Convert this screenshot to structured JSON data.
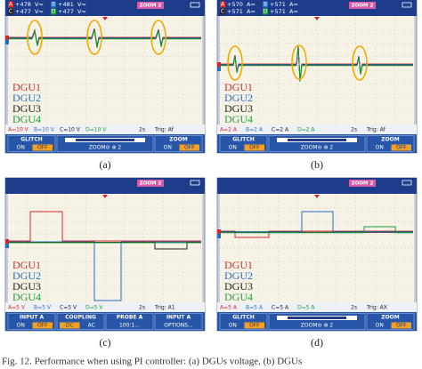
{
  "channel_colors": [
    "#d62828",
    "#1f6fd0",
    "#222222",
    "#1f9e3a"
  ],
  "panels": [
    {
      "top_readings": [
        {
          "channel": "A",
          "value": "+478",
          "unit": "V="
        },
        {
          "channel": "B",
          "value": "+481",
          "unit": "V="
        },
        {
          "channel": "C",
          "value": "+477",
          "unit": "V="
        },
        {
          "channel": "D",
          "value": "+477",
          "unit": "V="
        }
      ],
      "zoom": "ZOOM 2",
      "legend": [
        "DGU1",
        "DGU2",
        "DGU3",
        "DGU4"
      ],
      "scales": [
        "A=10 V",
        "B=10 V",
        "C=10 V",
        "D=10 V"
      ],
      "timebase": "2s",
      "trigger": "Trig: Af",
      "buttons": [
        {
          "label": "GLITCH",
          "options": [
            "ON",
            "OFF"
          ],
          "selected": 1
        },
        {
          "label": "ZOOM⊖ ⊕ 2",
          "slider": true
        },
        {
          "label": "ZOOM",
          "options": [
            "ON",
            "OFF"
          ],
          "selected": 1
        }
      ],
      "caption": "(a)"
    },
    {
      "top_readings": [
        {
          "channel": "A",
          "value": "+570",
          "unit": "A="
        },
        {
          "channel": "B",
          "value": "+571",
          "unit": "A="
        },
        {
          "channel": "C",
          "value": "+571",
          "unit": "A="
        },
        {
          "channel": "D",
          "value": "+571",
          "unit": "A="
        }
      ],
      "zoom": "ZOOM 2",
      "legend": [
        "DGU1",
        "DGU2",
        "DGU3",
        "DGU4"
      ],
      "scales": [
        "A=2 A",
        "B=2 A",
        "C=2 A",
        "D=2 A"
      ],
      "timebase": "2s",
      "trigger": "Trig: Af",
      "buttons": [
        {
          "label": "GLITCH",
          "options": [
            "ON",
            "OFF"
          ],
          "selected": 1
        },
        {
          "label": "ZOOM⊖ ⊕ 2",
          "slider": true
        },
        {
          "label": "ZOOM",
          "options": [
            "ON",
            "OFF"
          ],
          "selected": 1
        }
      ],
      "caption": "(b)"
    },
    {
      "top_readings": [],
      "zoom": "ZOOM 2",
      "legend": [
        "DGU1",
        "DGU2",
        "DGU3",
        "DGU4"
      ],
      "scales": [
        "A=5 V",
        "B=5 V",
        "C=5 V",
        "D=5 V"
      ],
      "timebase": "2s",
      "trigger": "Trig: A1",
      "buttons": [
        {
          "label": "INPUT A",
          "options": [
            "ON",
            "OFF"
          ],
          "selected": 1
        },
        {
          "label": "COUPLING",
          "options": [
            "DC",
            "AC"
          ],
          "selected": 0
        },
        {
          "label": "PROBE A",
          "options": [
            "100:1..."
          ]
        },
        {
          "label": "INPUT A",
          "options": [
            "OPTIONS..."
          ]
        }
      ],
      "caption": "(c)"
    },
    {
      "top_readings": [],
      "zoom": "ZOOM 2",
      "legend": [
        "DGU1",
        "DGU2",
        "DGU3",
        "DGU4"
      ],
      "scales": [
        "A=5 A",
        "B=5 A",
        "C=5 A",
        "D=5 A"
      ],
      "timebase": "2s",
      "trigger": "Trig: AX",
      "buttons": [
        {
          "label": "GLITCH",
          "options": [
            "ON",
            "OFF"
          ],
          "selected": 1
        },
        {
          "label": "ZOOM⊖ ⊕ 2",
          "slider": true
        },
        {
          "label": "ZOOM",
          "options": [
            "ON",
            "OFF"
          ],
          "selected": 1
        }
      ],
      "caption": "(d)"
    }
  ],
  "figure_caption": "Fig. 12.   Performance when using PI controller: (a) DGUs voltage, (b) DGUs"
}
